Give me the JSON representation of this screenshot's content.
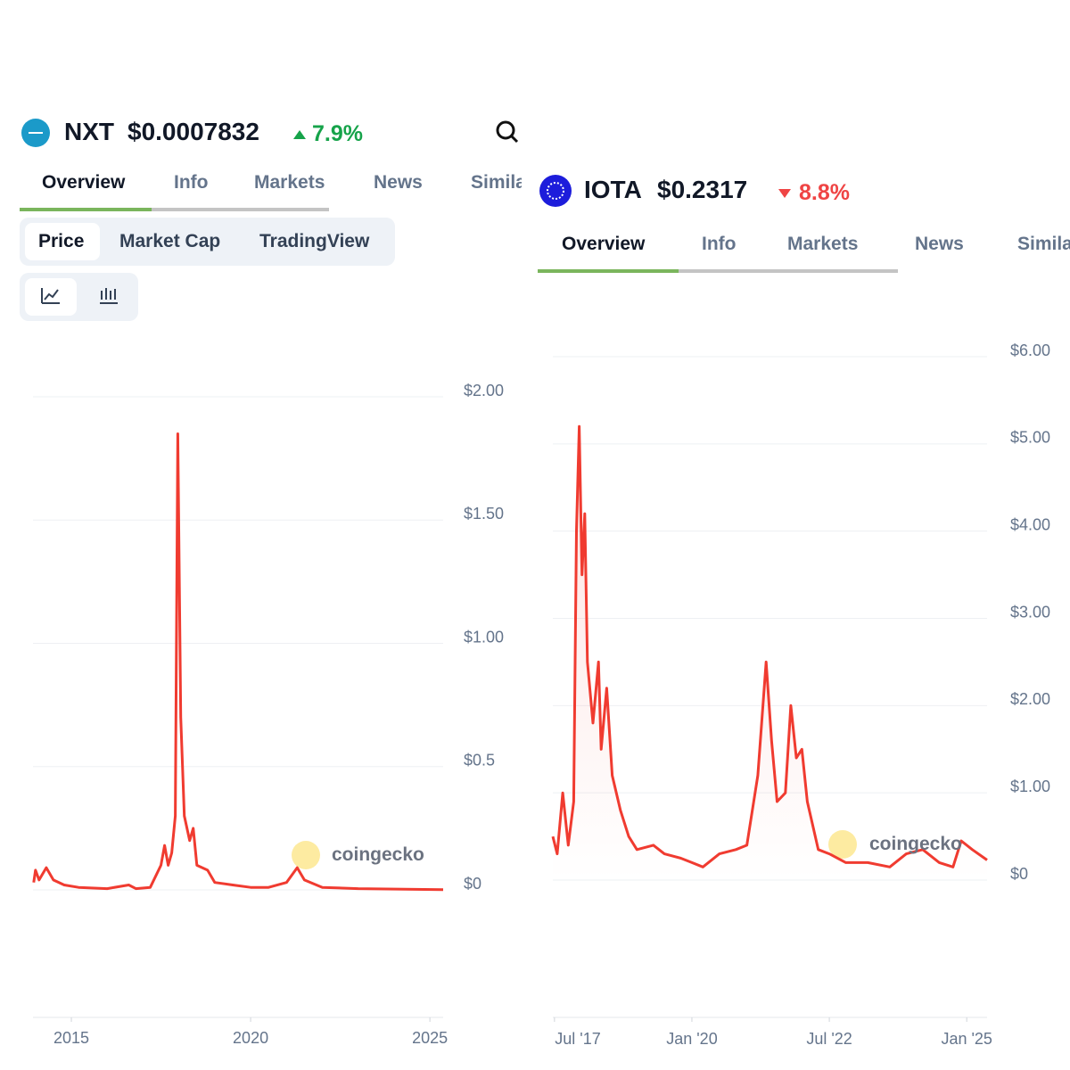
{
  "panels": [
    {
      "symbol": "NXT",
      "price": "$0.0007832",
      "change": "7.9%",
      "tabs": [
        "Overview",
        "Info",
        "Markets",
        "News",
        "Similar"
      ],
      "chart_tabs": [
        "Price",
        "Market Cap",
        "TradingView"
      ],
      "watermark": "coingecko"
    },
    {
      "symbol": "IOTA",
      "price": "$0.2317",
      "change": "8.8%",
      "tabs": [
        "Overview",
        "Info",
        "Markets",
        "News",
        "Similar"
      ],
      "watermark": "coingecko"
    }
  ],
  "chart_data": [
    {
      "type": "line",
      "color": "#f03b30",
      "grid": true,
      "x": [
        2013.95,
        2014.0,
        2014.1,
        2014.3,
        2014.5,
        2014.8,
        2015.2,
        2016.0,
        2016.6,
        2016.8,
        2017.2,
        2017.5,
        2017.6,
        2017.7,
        2017.8,
        2017.9,
        2017.97,
        2018.05,
        2018.15,
        2018.3,
        2018.4,
        2018.5,
        2018.8,
        2019.0,
        2019.5,
        2020.0,
        2020.5,
        2021.0,
        2021.3,
        2021.5,
        2022.0,
        2023.0,
        2025.37
      ],
      "values": [
        0.03,
        0.08,
        0.04,
        0.09,
        0.04,
        0.02,
        0.01,
        0.005,
        0.02,
        0.005,
        0.01,
        0.1,
        0.18,
        0.1,
        0.15,
        0.3,
        1.85,
        0.7,
        0.3,
        0.2,
        0.25,
        0.1,
        0.08,
        0.03,
        0.02,
        0.01,
        0.01,
        0.03,
        0.09,
        0.04,
        0.01,
        0.005,
        0.001
      ],
      "xlim": [
        2013.93,
        2025.37
      ],
      "xticks": [
        2015,
        2020,
        2025
      ],
      "ylim": [
        0,
        2
      ],
      "yticks": [
        {
          "value": 0,
          "label": "$0"
        },
        {
          "value": 0.5,
          "label": "$0.5"
        },
        {
          "value": 1,
          "label": "$1.00"
        },
        {
          "value": 1.5,
          "label": "$1.50"
        },
        {
          "value": 2,
          "label": "$2.00"
        }
      ]
    },
    {
      "type": "area",
      "color": "#f03b30",
      "grid": true,
      "x": [
        2017.47,
        2017.55,
        2017.65,
        2017.75,
        2017.85,
        2017.9,
        2017.95,
        2018.0,
        2018.05,
        2018.1,
        2018.2,
        2018.3,
        2018.35,
        2018.45,
        2018.55,
        2018.7,
        2018.85,
        2019.0,
        2019.3,
        2019.5,
        2019.8,
        2020.0,
        2020.2,
        2020.5,
        2020.8,
        2021.0,
        2021.2,
        2021.35,
        2021.45,
        2021.55,
        2021.7,
        2021.8,
        2021.9,
        2022.0,
        2022.1,
        2022.3,
        2022.5,
        2022.8,
        2023.2,
        2023.6,
        2023.9,
        2024.2,
        2024.5,
        2024.75,
        2024.9,
        2025.1,
        2025.37
      ],
      "values": [
        0.5,
        0.3,
        1.0,
        0.4,
        0.9,
        4.0,
        5.2,
        3.5,
        4.2,
        2.5,
        1.8,
        2.5,
        1.5,
        2.2,
        1.2,
        0.8,
        0.5,
        0.35,
        0.4,
        0.3,
        0.25,
        0.2,
        0.15,
        0.3,
        0.35,
        0.4,
        1.2,
        2.5,
        1.6,
        0.9,
        1.0,
        2.0,
        1.4,
        1.5,
        0.9,
        0.35,
        0.3,
        0.2,
        0.2,
        0.15,
        0.3,
        0.35,
        0.2,
        0.15,
        0.45,
        0.35,
        0.23
      ],
      "xlim": [
        2017.47,
        2025.37
      ],
      "xticks": [
        {
          "value": 2017.5,
          "label": "Jul '17"
        },
        {
          "value": 2020.0,
          "label": "Jan '20"
        },
        {
          "value": 2022.5,
          "label": "Jul '22"
        },
        {
          "value": 2025.0,
          "label": "Jan '25"
        }
      ],
      "ylim": [
        0,
        6
      ],
      "yticks": [
        {
          "value": 0,
          "label": "$0"
        },
        {
          "value": 1,
          "label": "$1.00"
        },
        {
          "value": 2,
          "label": "$2.00"
        },
        {
          "value": 3,
          "label": "$3.00"
        },
        {
          "value": 4,
          "label": "$4.00"
        },
        {
          "value": 5,
          "label": "$5.00"
        },
        {
          "value": 6,
          "label": "$6.00"
        }
      ]
    }
  ]
}
